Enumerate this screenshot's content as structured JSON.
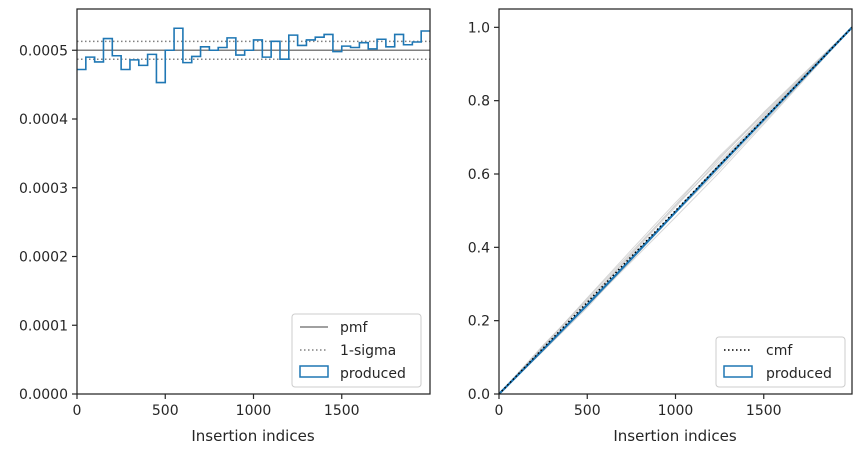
{
  "chart_data": [
    {
      "type": "line",
      "panel": "left",
      "xlabel": "Insertion indices",
      "ylabel": "",
      "xlim": [
        0,
        2000
      ],
      "ylim": [
        0,
        0.00056
      ],
      "xticks": [
        0,
        500,
        1000,
        1500
      ],
      "xtick_labels": [
        "0",
        "500",
        "1000",
        "1500"
      ],
      "yticks": [
        0,
        0.0001,
        0.0002,
        0.0003,
        0.0004,
        0.0005
      ],
      "ytick_labels": [
        "0.0000",
        "0.0001",
        "0.0002",
        "0.0003",
        "0.0004",
        "0.0005"
      ],
      "pmf": 0.0005,
      "sigma_upper": 0.000513,
      "sigma_lower": 0.000487,
      "bin_width": 50,
      "produced": [
        0.000472,
        0.00049,
        0.000483,
        0.000517,
        0.000492,
        0.000472,
        0.000486,
        0.000478,
        0.000494,
        0.000453,
        0.0005,
        0.000532,
        0.000482,
        0.000491,
        0.000505,
        0.0005,
        0.000504,
        0.000518,
        0.000493,
        0.0005,
        0.000515,
        0.00049,
        0.000513,
        0.000487,
        0.000522,
        0.000507,
        0.000515,
        0.000519,
        0.000523,
        0.000498,
        0.000506,
        0.000504,
        0.000511,
        0.000502,
        0.000516,
        0.000505,
        0.000523,
        0.000508,
        0.000512,
        0.000528
      ],
      "legend": [
        {
          "label": "pmf",
          "style": "solid-line",
          "color": "#808080"
        },
        {
          "label": "1-sigma",
          "style": "dotted-line",
          "color": "#808080"
        },
        {
          "label": "produced",
          "style": "patch",
          "color": "#1f77b4"
        }
      ],
      "legend_loc": "lower right"
    },
    {
      "type": "line",
      "panel": "right",
      "xlabel": "Insertion indices",
      "ylabel": "",
      "xlim": [
        0,
        2000
      ],
      "ylim": [
        0,
        1.05
      ],
      "xticks": [
        0,
        500,
        1000,
        1500
      ],
      "xtick_labels": [
        "0",
        "500",
        "1000",
        "1500"
      ],
      "yticks": [
        0,
        0.2,
        0.4,
        0.6,
        0.8,
        1.0
      ],
      "ytick_labels": [
        "0.0",
        "0.2",
        "0.4",
        "0.6",
        "0.8",
        "1.0"
      ],
      "cmf": {
        "x": [
          0,
          2000
        ],
        "y": [
          0,
          1.0
        ]
      },
      "produced": {
        "x": [
          0,
          250,
          500,
          750,
          1000,
          1250,
          1500,
          1750,
          2000
        ],
        "y": [
          0,
          0.121,
          0.243,
          0.369,
          0.496,
          0.623,
          0.748,
          0.874,
          1.0
        ]
      },
      "bootstrap_deviations": [
        [
          0,
          0.006,
          0.01,
          0.012,
          0.014,
          0.01,
          0.008,
          0.004,
          0
        ],
        [
          0,
          -0.005,
          -0.008,
          -0.01,
          -0.006,
          -0.012,
          -0.009,
          -0.005,
          0
        ],
        [
          0,
          0.004,
          0.012,
          0.018,
          0.022,
          0.02,
          0.012,
          0.006,
          0
        ],
        [
          0,
          -0.003,
          -0.01,
          -0.014,
          -0.018,
          -0.02,
          -0.014,
          -0.007,
          0
        ],
        [
          0,
          0.008,
          0.006,
          0.002,
          -0.004,
          -0.006,
          -0.002,
          0.002,
          0
        ],
        [
          0,
          -0.006,
          -0.002,
          0.006,
          0.01,
          0.016,
          0.018,
          0.01,
          0
        ],
        [
          0,
          0.002,
          0.004,
          0.008,
          0.016,
          0.024,
          0.016,
          0.008,
          0
        ],
        [
          0,
          -0.008,
          -0.014,
          -0.008,
          -0.002,
          0.004,
          0.006,
          0.003,
          0
        ]
      ],
      "legend": [
        {
          "label": "cmf",
          "style": "dotted-line",
          "color": "#000000"
        },
        {
          "label": "produced",
          "style": "patch",
          "color": "#1f77b4"
        }
      ],
      "legend_loc": "lower right"
    }
  ]
}
